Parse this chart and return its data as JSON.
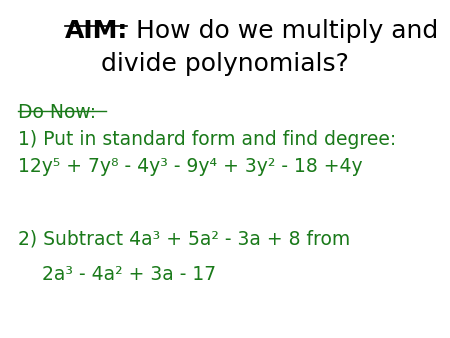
{
  "background_color": "#ffffff",
  "title_aim": "AIM:",
  "title_line1_rest": " How do we multiply and",
  "title_line2": "divide polynomials?",
  "green_color": "#1a7a1a",
  "black_color": "#000000",
  "do_now_label": "Do Now:",
  "line1": "1) Put in standard form and find degree:",
  "line2": "12y⁵ + 7y⁸ - 4y³ - 9y⁴ + 3y² - 18 +4y",
  "line3": "2) Subtract 4a³ + 5a² - 3a + 8 from",
  "line4": "    2a³ - 4a² + 3a - 17",
  "title_fontsize": 18,
  "body_fontsize": 13.5
}
